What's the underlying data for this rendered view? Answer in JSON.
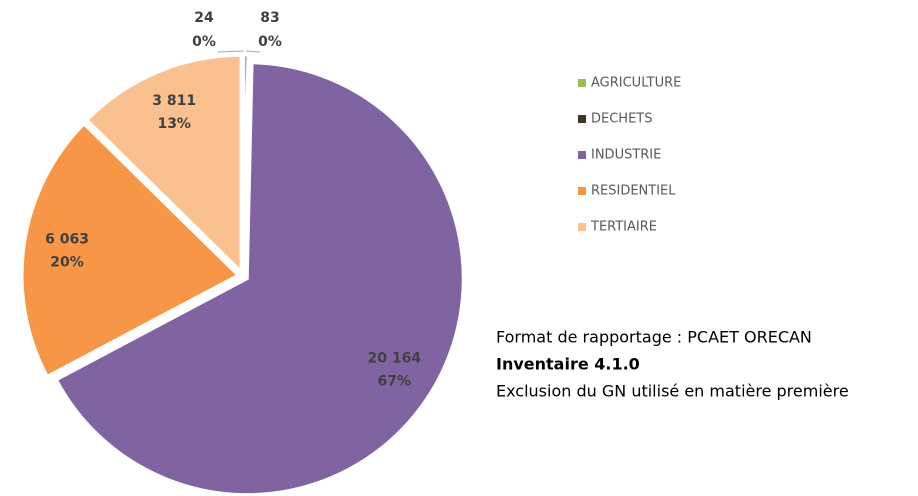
{
  "chart_data": {
    "type": "pie",
    "categories": [
      "AGRICULTURE",
      "DECHETS",
      "INDUSTRIE",
      "RESIDENTIEL",
      "TERTIAIRE"
    ],
    "values": [
      24,
      83,
      20164,
      6063,
      3811
    ],
    "value_labels": [
      "24",
      "83",
      "20 164",
      "6 063",
      "3 811"
    ],
    "percents": [
      0,
      0,
      67,
      20,
      13
    ],
    "percent_labels": [
      "0%",
      "0%",
      "67%",
      "20%",
      "13%"
    ],
    "colors": [
      "#9bbb59",
      "#3b3524",
      "#8064a2",
      "#f79646",
      "#fac090"
    ],
    "legend": "right"
  },
  "notes": [
    "Format de rapportage : PCAET ORECAN",
    "Inventaire 4.1.0",
    "Exclusion du GN utilisé en matière première"
  ]
}
